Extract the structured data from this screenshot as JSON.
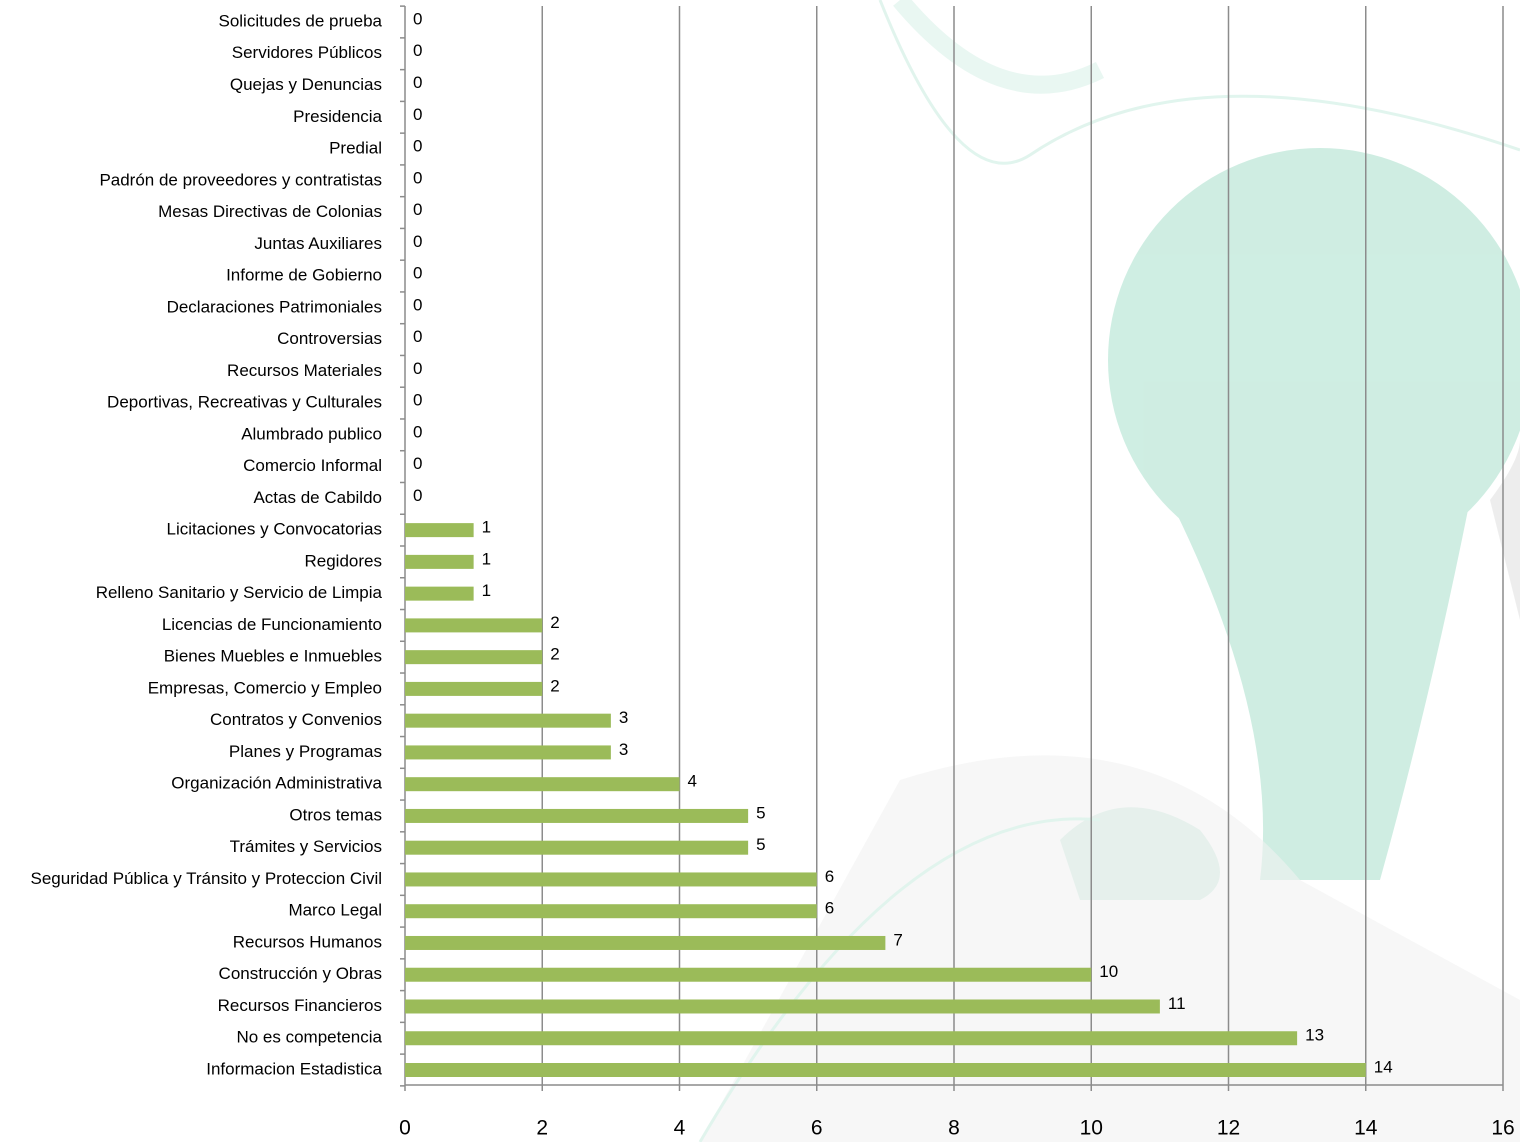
{
  "chart_data": {
    "type": "barh",
    "categories": [
      "Solicitudes de prueba",
      "Servidores Públicos",
      "Quejas y Denuncias",
      "Presidencia",
      "Predial",
      "Padrón de proveedores y contratistas",
      "Mesas Directivas de Colonias",
      "Juntas Auxiliares",
      "Informe de Gobierno",
      "Declaraciones Patrimoniales",
      "Controversias",
      "Recursos Materiales",
      "Deportivas, Recreativas y Culturales",
      "Alumbrado publico",
      "Comercio Informal",
      "Actas de Cabildo",
      "Licitaciones y Convocatorias",
      "Regidores",
      "Relleno Sanitario y Servicio de Limpia",
      "Licencias de Funcionamiento",
      "Bienes Muebles e Inmuebles",
      "Empresas, Comercio y Empleo",
      "Contratos y Convenios",
      "Planes y Programas",
      "Organización Administrativa",
      "Otros temas",
      "Trámites y Servicios",
      "Seguridad Pública y Tránsito y Proteccion Civil",
      "Marco Legal",
      "Recursos Humanos",
      "Construcción y Obras",
      "Recursos Financieros",
      "No es competencia",
      "Informacion Estadistica"
    ],
    "values": [
      0,
      0,
      0,
      0,
      0,
      0,
      0,
      0,
      0,
      0,
      0,
      0,
      0,
      0,
      0,
      0,
      1,
      1,
      1,
      2,
      2,
      2,
      3,
      3,
      4,
      5,
      5,
      6,
      6,
      7,
      10,
      11,
      13,
      14
    ],
    "color": "#9bbb59",
    "xlim": [
      0,
      16
    ],
    "xticks": [
      0,
      2,
      4,
      6,
      8,
      10,
      12,
      14,
      16
    ],
    "grid": true
  }
}
